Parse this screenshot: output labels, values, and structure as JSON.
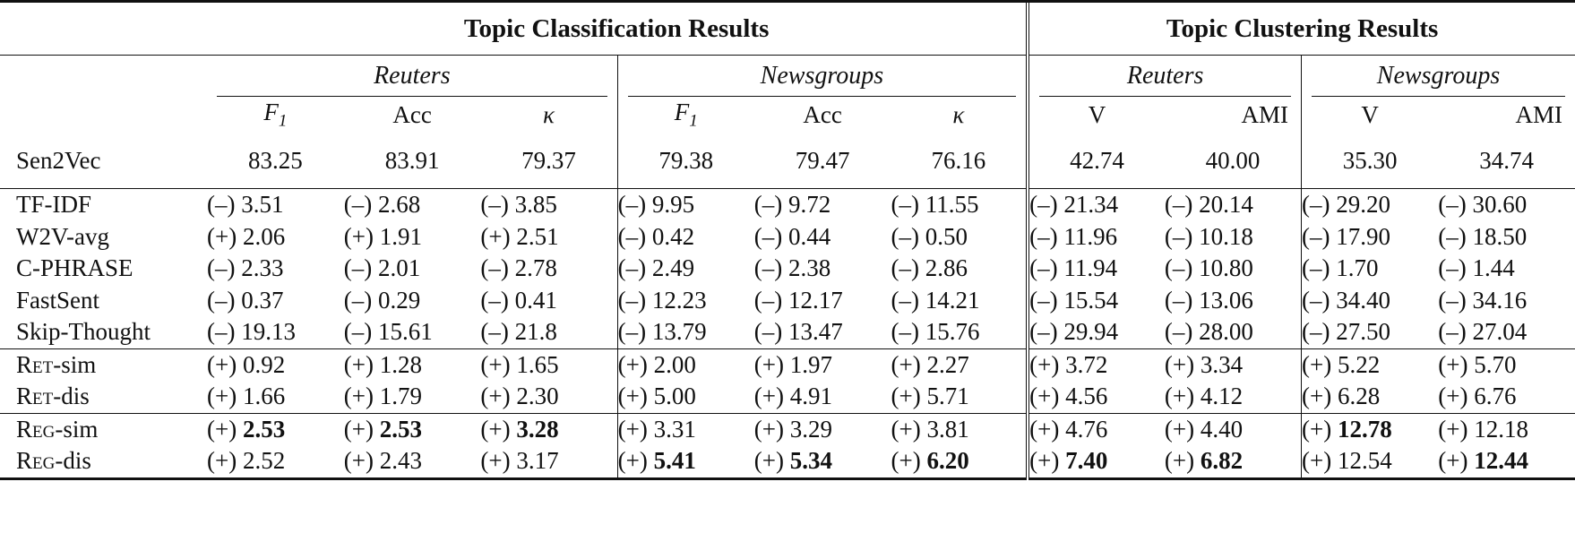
{
  "table": {
    "headers": {
      "classification": "Topic Classification Results",
      "clustering": "Topic Clustering Results",
      "datasets": [
        "Reuters",
        "Newsgroups",
        "Reuters",
        "Newsgroups"
      ],
      "metrics": [
        "F1",
        "Acc",
        "κ",
        "F1",
        "Acc",
        "κ",
        "V",
        "AMI",
        "V",
        "AMI"
      ]
    },
    "baseline": {
      "label": "Sen2Vec",
      "values": [
        "83.25",
        "83.91",
        "79.37",
        "79.38",
        "79.47",
        "76.16",
        "42.74",
        "40.00",
        "35.30",
        "34.74"
      ]
    },
    "groups": [
      {
        "rows": [
          {
            "label": "TF-IDF",
            "values": [
              "(–) 3.51",
              "(–) 2.68",
              "(–) 3.85",
              "(–) 9.95",
              "(–) 9.72",
              "(–) 11.55",
              "(–) 21.34",
              "(–) 20.14",
              "(–) 29.20",
              "(–) 30.60"
            ]
          },
          {
            "label": "W2V-avg",
            "values": [
              "(+) 2.06",
              "(+) 1.91",
              "(+) 2.51",
              "(–) 0.42",
              "(–) 0.44",
              "(–) 0.50",
              "(–) 11.96",
              "(–) 10.18",
              "(–) 17.90",
              "(–) 18.50"
            ]
          },
          {
            "label": "C-PHRASE",
            "values": [
              "(–) 2.33",
              "(–) 2.01",
              "(–) 2.78",
              "(–) 2.49",
              "(–) 2.38",
              "(–) 2.86",
              "(–) 11.94",
              "(–) 10.80",
              "(–) 1.70",
              "(–) 1.44"
            ]
          },
          {
            "label": "FastSent",
            "values": [
              "(–) 0.37",
              "(–) 0.29",
              "(–) 0.41",
              "(–) 12.23",
              "(–) 12.17",
              "(–) 14.21",
              "(–) 15.54",
              "(–) 13.06",
              "(–) 34.40",
              "(–) 34.16"
            ]
          },
          {
            "label": "Skip-Thought",
            "values": [
              "(–) 19.13",
              "(–) 15.61",
              "(–) 21.8",
              "(–) 13.79",
              "(–) 13.47",
              "(–) 15.76",
              "(–) 29.94",
              "(–) 28.00",
              "(–) 27.50",
              "(–) 27.04"
            ]
          }
        ]
      },
      {
        "rows": [
          {
            "label": "Ret-sim",
            "values": [
              "(+) 0.92",
              "(+) 1.28",
              "(+) 1.65",
              "(+) 2.00",
              "(+) 1.97",
              "(+) 2.27",
              "(+) 3.72",
              "(+) 3.34",
              "(+) 5.22",
              "(+) 5.70"
            ]
          },
          {
            "label": "Ret-dis",
            "values": [
              "(+) 1.66",
              "(+) 1.79",
              "(+) 2.30",
              "(+) 5.00",
              "(+) 4.91",
              "(+) 5.71",
              "(+) 4.56",
              "(+) 4.12",
              "(+) 6.28",
              "(+) 6.76"
            ]
          }
        ]
      },
      {
        "rows": [
          {
            "label": "Reg-sim",
            "signs": [
              "(+)",
              "(+)",
              "(+)",
              "(+)",
              "(+)",
              "(+)",
              "(+)",
              "(+)",
              "(+)",
              "(+)"
            ],
            "nums": [
              "2.53",
              "2.53",
              "3.28",
              "3.31",
              "3.29",
              "3.81",
              "4.76",
              "4.40",
              "12.78",
              "12.18"
            ],
            "bold": [
              true,
              true,
              true,
              false,
              false,
              false,
              false,
              false,
              true,
              false
            ]
          },
          {
            "label": "Reg-dis",
            "signs": [
              "(+)",
              "(+)",
              "(+)",
              "(+)",
              "(+)",
              "(+)",
              "(+)",
              "(+)",
              "(+)",
              "(+)"
            ],
            "nums": [
              "2.52",
              "2.43",
              "3.17",
              "5.41",
              "5.34",
              "6.20",
              "7.40",
              "6.82",
              "12.54",
              "12.44"
            ],
            "bold": [
              false,
              false,
              false,
              true,
              true,
              true,
              true,
              true,
              false,
              true
            ]
          }
        ]
      }
    ]
  }
}
